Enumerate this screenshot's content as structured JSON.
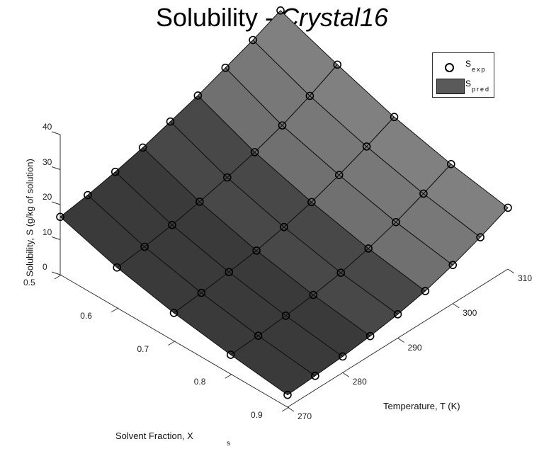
{
  "title": {
    "main": "Solubility - ",
    "italic": "Crystal16"
  },
  "legend": {
    "items": [
      {
        "symbol": "circle-marker",
        "label": "S",
        "subscript": "exp"
      },
      {
        "symbol": "gray-surface-swatch",
        "label": "S",
        "subscript": "pred"
      }
    ]
  },
  "axes": {
    "x": {
      "label": "Solvent Fraction, X",
      "label_subscript": "s",
      "ticks": [
        "0.5",
        "0.6",
        "0.7",
        "0.8",
        "0.9"
      ]
    },
    "y": {
      "label": "Temperature, T (K)",
      "ticks": [
        "270",
        "280",
        "290",
        "300",
        "310"
      ]
    },
    "z": {
      "label": "Solubility, S (g/kg of solution)",
      "ticks": [
        "0",
        "10",
        "20",
        "30",
        "40"
      ]
    }
  },
  "chart_data": {
    "type": "surface3d",
    "title": "Solubility - Crystal16",
    "xlabel": "Solvent Fraction, Xs",
    "ylabel": "Temperature, T (K)",
    "zlabel": "Solubility, S (g/kg of solution)",
    "xlim": [
      0.5,
      0.9
    ],
    "ylim": [
      270,
      310
    ],
    "zlim": [
      0,
      40
    ],
    "legend": [
      "S_exp",
      "S_pred"
    ],
    "legend_position": "top-right",
    "x": [
      0.5,
      0.6,
      0.7,
      0.8,
      0.9
    ],
    "T": [
      270,
      275,
      280,
      285,
      290,
      295,
      300,
      305,
      310
    ],
    "series": [
      {
        "name": "S_pred (surface)",
        "z_by_x_rows": [
          [
            16.5,
            17.8,
            19.5,
            21.5,
            24.0,
            26.5,
            29.5,
            32.5,
            36.0
          ],
          [
            11.5,
            12.5,
            13.8,
            15.5,
            17.5,
            19.8,
            22.5,
            26.0,
            30.0
          ],
          [
            8.0,
            8.8,
            9.8,
            11.0,
            12.8,
            15.0,
            17.8,
            21.0,
            24.5
          ],
          [
            5.5,
            6.0,
            6.8,
            7.8,
            9.2,
            11.2,
            13.8,
            17.0,
            20.5
          ],
          [
            3.5,
            4.0,
            4.6,
            5.5,
            6.8,
            8.5,
            11.0,
            14.0,
            17.5
          ]
        ]
      },
      {
        "name": "S_exp (markers)",
        "note": "open circles at each grid vertex, closely matching surface"
      }
    ]
  }
}
